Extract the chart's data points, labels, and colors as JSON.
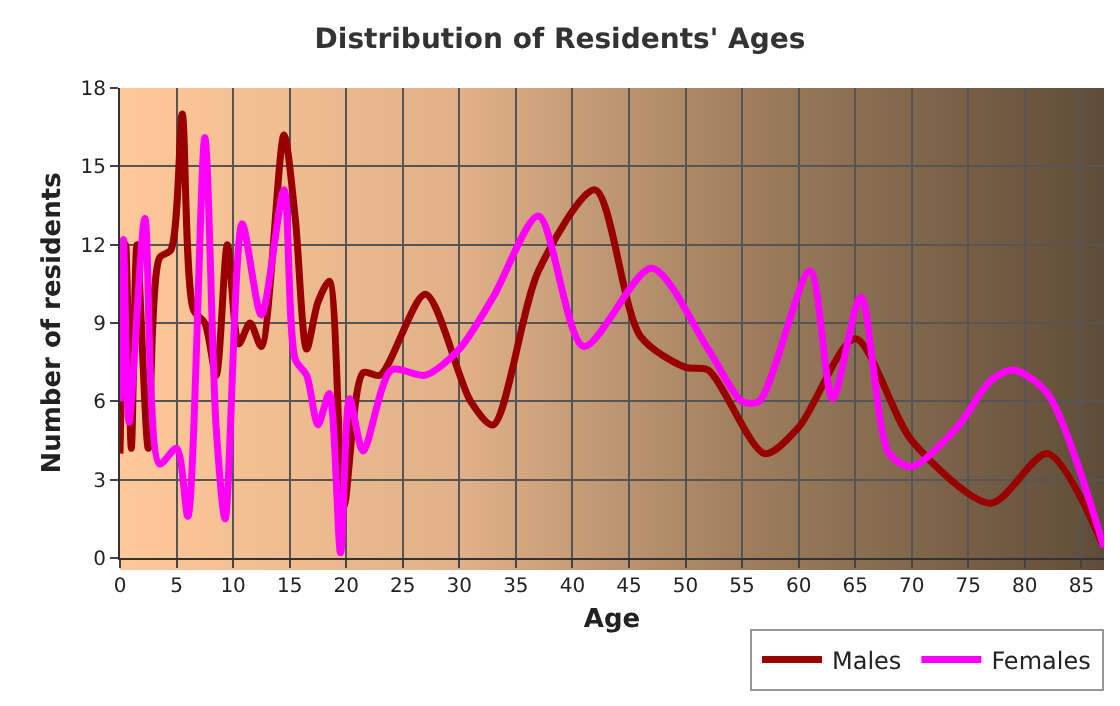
{
  "chart_data": {
    "type": "line",
    "title": "Distribution of Residents' Ages",
    "xlabel": "Age",
    "ylabel": "Number of residents",
    "xlim": [
      0,
      87
    ],
    "xticks": [
      0,
      5,
      10,
      15,
      20,
      25,
      30,
      35,
      40,
      45,
      50,
      55,
      60,
      65,
      70,
      75,
      80,
      85
    ],
    "ylim": [
      0,
      18
    ],
    "yticks": [
      0,
      3,
      6,
      9,
      12,
      15,
      18
    ],
    "grid": true,
    "legend": "bottom right",
    "marker": "none",
    "line_style": "solid",
    "series": [
      {
        "name": "Males",
        "color": "#990000",
        "x": [
          0,
          0.5,
          1,
          1.5,
          2.5,
          3.5,
          4.5,
          5.5,
          6.5,
          7.5,
          8.5,
          9.5,
          10.5,
          11.5,
          12.5,
          14.5,
          15.5,
          16.5,
          17.5,
          18.5,
          19.8,
          21.5,
          23,
          27,
          31,
          33,
          37,
          42,
          46,
          50,
          52,
          57,
          60,
          65,
          70,
          77,
          82,
          87
        ],
        "values": [
          4,
          12,
          4.2,
          12,
          4.2,
          11.5,
          11.8,
          17,
          9.5,
          9,
          7,
          12,
          8.2,
          9,
          8.1,
          16.2,
          13,
          8,
          9.8,
          10.6,
          2,
          7.1,
          7,
          10.1,
          6,
          5.1,
          11,
          14.1,
          8.5,
          7.3,
          7.2,
          4,
          5,
          8.4,
          4.5,
          2.1,
          4,
          0.4
        ]
      },
      {
        "name": "Females",
        "color": "#ff00ff",
        "x": [
          0,
          0.3,
          0.8,
          2.2,
          3.5,
          5,
          6,
          7.5,
          8.5,
          9.3,
          10.8,
          12.5,
          14.5,
          15.5,
          16.5,
          17.5,
          18.5,
          19.5,
          20.3,
          21.5,
          24,
          27,
          30,
          33,
          37,
          41,
          47,
          52,
          55,
          56.5,
          61,
          63,
          65.5,
          68,
          70,
          74,
          77,
          79,
          82,
          87
        ],
        "values": [
          6,
          12.2,
          5.2,
          13,
          3.6,
          4.2,
          1.6,
          16.1,
          5,
          1.5,
          12.8,
          9.3,
          14.1,
          7.6,
          7,
          5.1,
          6.3,
          0.2,
          6.1,
          4.1,
          7.2,
          7,
          8,
          10,
          13.1,
          8.1,
          11.1,
          8,
          6,
          6,
          11,
          6.1,
          10,
          4,
          3.5,
          5,
          6.8,
          7.2,
          6.3,
          0.4
        ]
      }
    ]
  }
}
